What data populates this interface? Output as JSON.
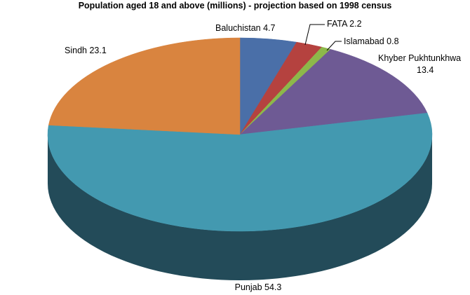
{
  "chart_data": {
    "type": "pie",
    "style": "3d",
    "title": "Population aged 18 and above (millions) - projection based on 1998 census",
    "legend": "none",
    "slices": [
      {
        "label": "Baluchistan",
        "value": 4.7,
        "display": "Baluchistan 4.7",
        "color": "#4a6fa8",
        "side": "#2f4a72"
      },
      {
        "label": "FATA",
        "value": 2.2,
        "display": "FATA 2.2",
        "color": "#b5423f",
        "side": "#7a2b29"
      },
      {
        "label": "Islamabad",
        "value": 0.8,
        "display": "Islamabad 0.8",
        "color": "#8db84a",
        "side": "#5e7d30"
      },
      {
        "label": "Khyber Pukhtunkhwa",
        "value": 13.4,
        "display": [
          "Khyber Pukhtunkhwa",
          "13.4"
        ],
        "color": "#6e5a94",
        "side": "#4a3c66"
      },
      {
        "label": "Punjab",
        "value": 54.3,
        "display": "Punjab 54.3",
        "color": "#4399b0",
        "side": "#234b59"
      },
      {
        "label": "Sindh",
        "value": 23.1,
        "display": "Sindh 23.1",
        "color": "#d9843f",
        "side": "#94592a"
      }
    ]
  }
}
